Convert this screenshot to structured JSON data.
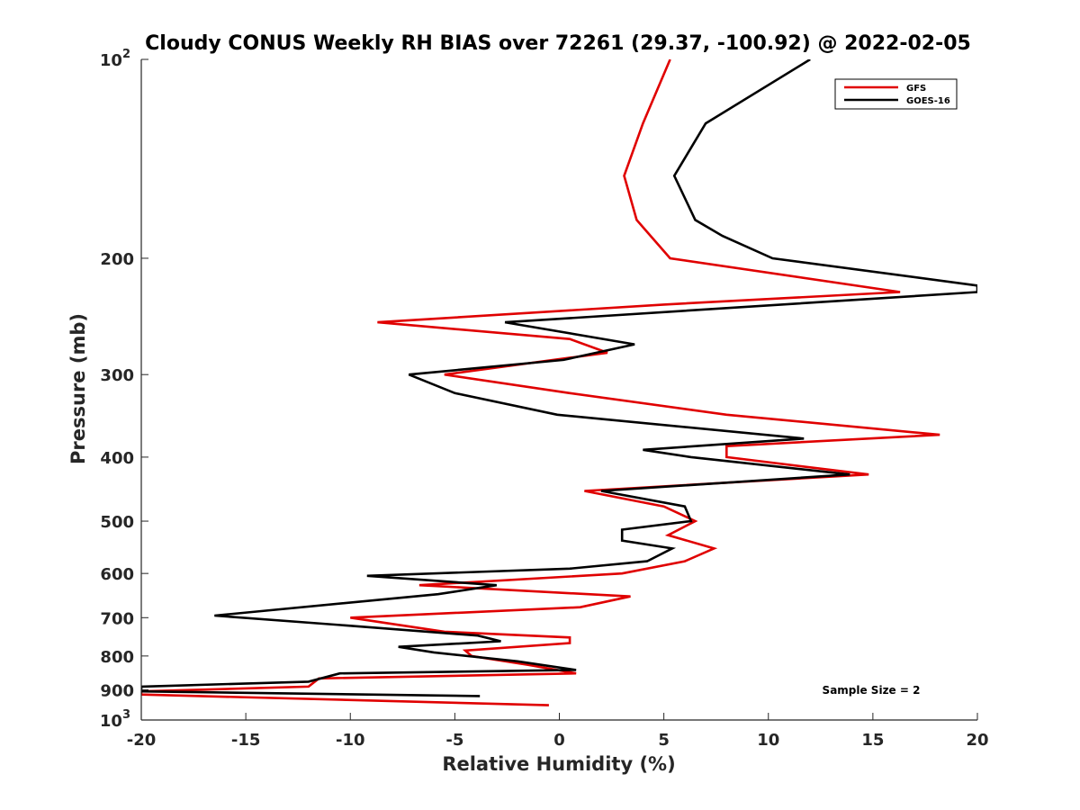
{
  "chart_data": {
    "type": "line",
    "title": "Cloudy CONUS Weekly RH BIAS over 72261 (29.37, -100.92) @ 2022-02-05",
    "xlabel": "Relative Humidity (%)",
    "ylabel": "Pressure (mb)",
    "xlim": [
      -20,
      20
    ],
    "ylim": [
      100,
      1000
    ],
    "y_scale": "log",
    "y_reversed": true,
    "grid": false,
    "legend_placement": "top-right",
    "x_ticks": [
      "-20",
      "-15",
      "-10",
      "-5",
      "0",
      "5",
      "10",
      "15",
      "20"
    ],
    "y_ticks": [
      {
        "value": 100,
        "base": "10",
        "exp": "2"
      },
      {
        "value": 200,
        "label": "200"
      },
      {
        "value": 300,
        "label": "300"
      },
      {
        "value": 400,
        "label": "400"
      },
      {
        "value": 500,
        "label": "500"
      },
      {
        "value": 600,
        "label": "600"
      },
      {
        "value": 700,
        "label": "700"
      },
      {
        "value": 800,
        "label": "800"
      },
      {
        "value": 900,
        "label": "900"
      },
      {
        "value": 1000,
        "base": "10",
        "exp": "3"
      }
    ],
    "series": [
      {
        "name": "GFS",
        "color": "#e00000",
        "points": [
          [
            5.3,
            100
          ],
          [
            4.0,
            125
          ],
          [
            3.1,
            150
          ],
          [
            3.7,
            175
          ],
          [
            5.3,
            200
          ],
          [
            16.3,
            225
          ],
          [
            5.0,
            235
          ],
          [
            -8.7,
            250
          ],
          [
            0.5,
            265
          ],
          [
            2.3,
            278
          ],
          [
            -5.5,
            300
          ],
          [
            0.5,
            320
          ],
          [
            8.0,
            345
          ],
          [
            18.2,
            370
          ],
          [
            8.0,
            385
          ],
          [
            8.0,
            400
          ],
          [
            14.8,
            425
          ],
          [
            1.2,
            450
          ],
          [
            5.0,
            475
          ],
          [
            6.5,
            500
          ],
          [
            5.2,
            525
          ],
          [
            7.4,
            550
          ],
          [
            6.0,
            575
          ],
          [
            3.0,
            600
          ],
          [
            -6.7,
            625
          ],
          [
            3.4,
            650
          ],
          [
            1.0,
            675
          ],
          [
            -10.0,
            700
          ],
          [
            -5.5,
            735
          ],
          [
            0.5,
            750
          ],
          [
            0.5,
            765
          ],
          [
            -4.5,
            785
          ],
          [
            -4.2,
            800
          ],
          [
            -1.5,
            825
          ],
          [
            0.8,
            850
          ],
          [
            -11.5,
            865
          ],
          [
            -12.0,
            890
          ],
          [
            -20.0,
            905
          ],
          [
            -20.0,
            915
          ],
          [
            -0.5,
            950
          ]
        ]
      },
      {
        "name": "GOES-16",
        "color": "#000000",
        "points": [
          [
            12.0,
            100
          ],
          [
            7.0,
            125
          ],
          [
            5.5,
            150
          ],
          [
            6.5,
            175
          ],
          [
            7.8,
            185
          ],
          [
            10.2,
            200
          ],
          [
            20.0,
            220
          ],
          [
            20.0,
            225
          ],
          [
            -2.6,
            250
          ],
          [
            3.6,
            270
          ],
          [
            0.2,
            285
          ],
          [
            -7.2,
            300
          ],
          [
            -5.0,
            320
          ],
          [
            -0.1,
            345
          ],
          [
            11.7,
            375
          ],
          [
            4.0,
            390
          ],
          [
            6.3,
            400
          ],
          [
            13.9,
            425
          ],
          [
            2.0,
            450
          ],
          [
            6.0,
            475
          ],
          [
            6.3,
            500
          ],
          [
            3.0,
            515
          ],
          [
            3.0,
            535
          ],
          [
            5.4,
            550
          ],
          [
            4.2,
            575
          ],
          [
            0.5,
            590
          ],
          [
            -9.2,
            605
          ],
          [
            -3.0,
            625
          ],
          [
            -5.8,
            645
          ],
          [
            -16.5,
            695
          ],
          [
            -10.0,
            720
          ],
          [
            -3.9,
            745
          ],
          [
            -2.8,
            760
          ],
          [
            -7.7,
            775
          ],
          [
            -6.0,
            790
          ],
          [
            -2.0,
            815
          ],
          [
            0.8,
            840
          ],
          [
            -10.5,
            850
          ],
          [
            -12.0,
            875
          ],
          [
            -20.0,
            890
          ],
          [
            -20.0,
            905
          ],
          [
            -3.8,
            920
          ]
        ]
      }
    ],
    "annotations": [
      "Sample Size = 2"
    ]
  }
}
